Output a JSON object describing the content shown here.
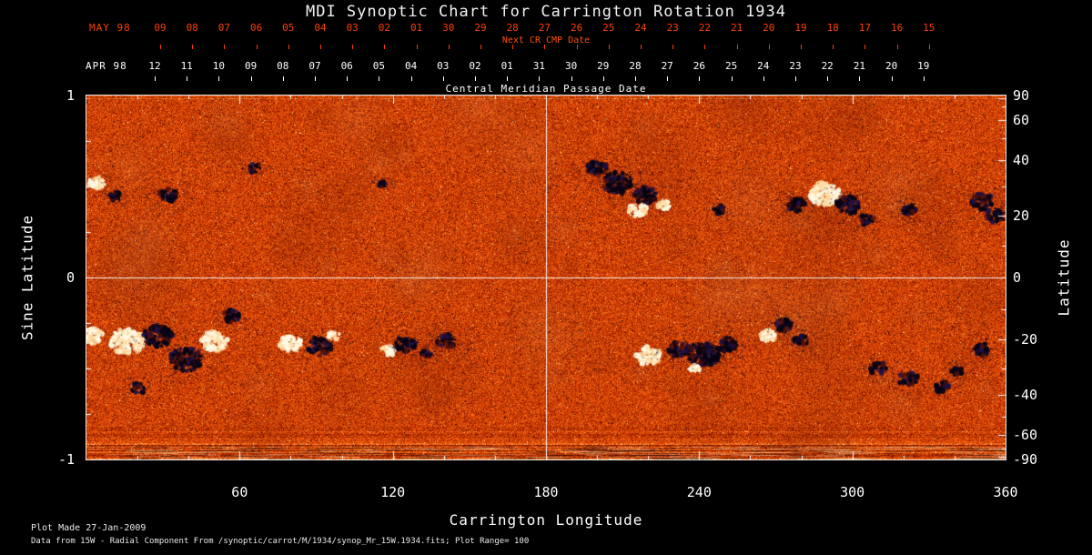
{
  "title": "MDI Synoptic Chart for Carrington Rotation 1934",
  "top_axis": {
    "next_cr": {
      "month": "MAY 98",
      "label": "Next CR CMP Date",
      "days": [
        "09",
        "08",
        "07",
        "06",
        "05",
        "04",
        "03",
        "02",
        "01",
        "30",
        "29",
        "28",
        "27",
        "26",
        "25",
        "24",
        "23",
        "22",
        "21",
        "20",
        "19",
        "18",
        "17",
        "16",
        "15"
      ]
    },
    "cmp": {
      "month": "APR 98",
      "label": "Central Meridian Passage Date",
      "days": [
        "12",
        "11",
        "10",
        "09",
        "08",
        "07",
        "06",
        "05",
        "04",
        "03",
        "02",
        "01",
        "31",
        "30",
        "29",
        "28",
        "27",
        "26",
        "25",
        "24",
        "23",
        "22",
        "21",
        "20",
        "19"
      ]
    }
  },
  "axes": {
    "left_title": "Sine Latitude",
    "right_title": "Latitude",
    "bottom_title": "Carrington Longitude",
    "left_ticks": [
      "1",
      "0",
      "-1"
    ],
    "right_ticks": [
      "90",
      "60",
      "40",
      "20",
      "0",
      "-20",
      "-40",
      "-60",
      "-90"
    ],
    "bottom_ticks": [
      "60",
      "120",
      "180",
      "240",
      "300",
      "360"
    ]
  },
  "footer": {
    "line1": "Plot Made 27-Jan-2009",
    "line2": "Data from 15W - Radial Component From /synoptic/carrot/M/1934/synop_Mr_15W.1934.fits; Plot Range=  100"
  },
  "colors": {
    "background": "#000000",
    "text": "#ffffff",
    "accent_red": "#ff3d00",
    "base_orange": "#d84400",
    "negative_polarity_dark": "#0a0618",
    "positive_polarity_bright": "#fff4dc"
  },
  "chart_data": {
    "type": "heatmap",
    "title": "MDI Synoptic Chart for Carrington Rotation 1934",
    "instrument": "MDI",
    "carrington_rotation": 1934,
    "plot_range": 100,
    "xlabel": "Carrington Longitude",
    "ylabel_left": "Sine Latitude",
    "ylabel_right": "Latitude",
    "xlim": [
      0,
      360
    ],
    "ylim_sine_latitude": [
      -1,
      1
    ],
    "x_ticks": [
      60,
      120,
      180,
      240,
      300,
      360
    ],
    "left_tick_values": [
      1,
      0,
      -1
    ],
    "right_tick_values": [
      90,
      60,
      40,
      20,
      0,
      -20,
      -40,
      -60,
      -90
    ],
    "grid_lines": {
      "lon": 180,
      "sin_lat": 0
    },
    "legend_position": "none",
    "active_regions": [
      {
        "lon": 4,
        "slat": 0.52,
        "r": 7,
        "pol": "pos"
      },
      {
        "lon": 11,
        "slat": 0.45,
        "r": 5,
        "pol": "neg"
      },
      {
        "lon": 32,
        "slat": 0.45,
        "r": 8,
        "pol": "neg"
      },
      {
        "lon": 66,
        "slat": 0.6,
        "r": 5,
        "pol": "neg"
      },
      {
        "lon": 116,
        "slat": 0.52,
        "r": 4,
        "pol": "neg"
      },
      {
        "lon": 200,
        "slat": 0.6,
        "r": 8,
        "pol": "neg"
      },
      {
        "lon": 208,
        "slat": 0.52,
        "r": 12,
        "pol": "neg"
      },
      {
        "lon": 219,
        "slat": 0.45,
        "r": 9,
        "pol": "neg"
      },
      {
        "lon": 216,
        "slat": 0.37,
        "r": 8,
        "pol": "pos"
      },
      {
        "lon": 226,
        "slat": 0.4,
        "r": 6,
        "pol": "pos"
      },
      {
        "lon": 248,
        "slat": 0.37,
        "r": 5,
        "pol": "neg"
      },
      {
        "lon": 278,
        "slat": 0.4,
        "r": 7,
        "pol": "neg"
      },
      {
        "lon": 289,
        "slat": 0.46,
        "r": 13,
        "pol": "pos"
      },
      {
        "lon": 298,
        "slat": 0.4,
        "r": 10,
        "pol": "neg"
      },
      {
        "lon": 306,
        "slat": 0.32,
        "r": 6,
        "pol": "neg"
      },
      {
        "lon": 322,
        "slat": 0.37,
        "r": 6,
        "pol": "neg"
      },
      {
        "lon": 351,
        "slat": 0.42,
        "r": 9,
        "pol": "neg"
      },
      {
        "lon": 356,
        "slat": 0.34,
        "r": 8,
        "pol": "neg"
      },
      {
        "lon": 2,
        "slat": -0.32,
        "r": 9,
        "pol": "pos"
      },
      {
        "lon": 16,
        "slat": -0.35,
        "r": 14,
        "pol": "pos"
      },
      {
        "lon": 28,
        "slat": -0.32,
        "r": 12,
        "pol": "neg"
      },
      {
        "lon": 39,
        "slat": -0.45,
        "r": 13,
        "pol": "neg"
      },
      {
        "lon": 50,
        "slat": -0.35,
        "r": 11,
        "pol": "pos"
      },
      {
        "lon": 57,
        "slat": -0.21,
        "r": 7,
        "pol": "neg"
      },
      {
        "lon": 20,
        "slat": -0.61,
        "r": 6,
        "pol": "neg"
      },
      {
        "lon": 80,
        "slat": -0.36,
        "r": 9,
        "pol": "pos"
      },
      {
        "lon": 91,
        "slat": -0.38,
        "r": 10,
        "pol": "neg"
      },
      {
        "lon": 97,
        "slat": -0.32,
        "r": 5,
        "pol": "pos"
      },
      {
        "lon": 118,
        "slat": -0.4,
        "r": 6,
        "pol": "pos"
      },
      {
        "lon": 125,
        "slat": -0.37,
        "r": 9,
        "pol": "neg"
      },
      {
        "lon": 133,
        "slat": -0.42,
        "r": 5,
        "pol": "neg"
      },
      {
        "lon": 141,
        "slat": -0.35,
        "r": 8,
        "pol": "neg"
      },
      {
        "lon": 220,
        "slat": -0.43,
        "r": 10,
        "pol": "pos"
      },
      {
        "lon": 232,
        "slat": -0.4,
        "r": 9,
        "pol": "neg"
      },
      {
        "lon": 242,
        "slat": -0.42,
        "r": 13,
        "pol": "neg"
      },
      {
        "lon": 251,
        "slat": -0.37,
        "r": 8,
        "pol": "neg"
      },
      {
        "lon": 238,
        "slat": -0.5,
        "r": 5,
        "pol": "pos"
      },
      {
        "lon": 267,
        "slat": -0.32,
        "r": 7,
        "pol": "pos"
      },
      {
        "lon": 273,
        "slat": -0.26,
        "r": 7,
        "pol": "neg"
      },
      {
        "lon": 280,
        "slat": -0.35,
        "r": 6,
        "pol": "neg"
      },
      {
        "lon": 310,
        "slat": -0.5,
        "r": 7,
        "pol": "neg"
      },
      {
        "lon": 322,
        "slat": -0.56,
        "r": 8,
        "pol": "neg"
      },
      {
        "lon": 335,
        "slat": -0.6,
        "r": 6,
        "pol": "neg"
      },
      {
        "lon": 341,
        "slat": -0.52,
        "r": 5,
        "pol": "neg"
      },
      {
        "lon": 351,
        "slat": -0.4,
        "r": 7,
        "pol": "neg"
      }
    ]
  }
}
